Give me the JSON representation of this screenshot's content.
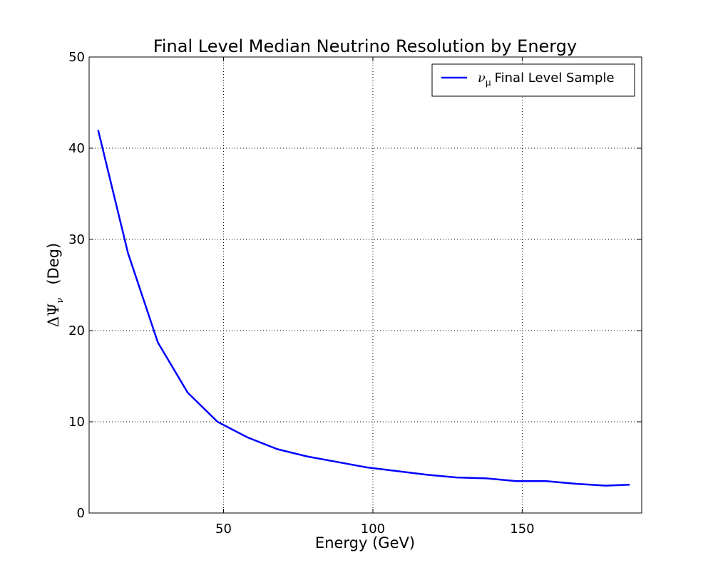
{
  "chart_data": {
    "type": "line",
    "title": "Final Level Median Neutrino Resolution by Energy",
    "xlabel": "Energy (GeV)",
    "ylabel": {
      "symbol": "ΔΨ",
      "subscript": "ν",
      "unit": "(Deg)"
    },
    "xlim": [
      5,
      190
    ],
    "ylim": [
      0,
      50
    ],
    "xticks": [
      50,
      100,
      150
    ],
    "yticks": [
      0,
      10,
      20,
      30,
      40,
      50
    ],
    "grid": true,
    "legend_position": "top-right",
    "series": [
      {
        "legend": {
          "symbol": "ν",
          "subscript": "μ",
          "text": "Final Level Sample"
        },
        "color": "#0000ff",
        "x": [
          8,
          18,
          28,
          38,
          48,
          58,
          68,
          78,
          88,
          98,
          108,
          118,
          128,
          138,
          148,
          158,
          168,
          178,
          186
        ],
        "y": [
          42.0,
          28.5,
          18.7,
          13.2,
          10.0,
          8.3,
          7.0,
          6.2,
          5.6,
          5.0,
          4.6,
          4.2,
          3.9,
          3.8,
          3.5,
          3.5,
          3.2,
          3.0,
          3.1
        ]
      }
    ]
  }
}
